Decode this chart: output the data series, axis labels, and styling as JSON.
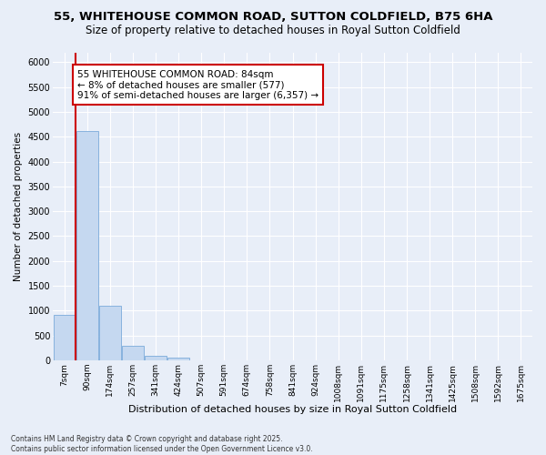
{
  "title": "55, WHITEHOUSE COMMON ROAD, SUTTON COLDFIELD, B75 6HA",
  "subtitle": "Size of property relative to detached houses in Royal Sutton Coldfield",
  "xlabel": "Distribution of detached houses by size in Royal Sutton Coldfield",
  "ylabel": "Number of detached properties",
  "bar_fill_color": "#c5d8f0",
  "bar_edge_color": "#7aabda",
  "annotation_text": "55 WHITEHOUSE COMMON ROAD: 84sqm\n← 8% of detached houses are smaller (577)\n91% of semi-detached houses are larger (6,357) →",
  "annotation_box_color": "#ffffff",
  "annotation_box_edge": "#cc0000",
  "vline_color": "#cc0000",
  "ylim": [
    0,
    6200
  ],
  "yticks": [
    0,
    500,
    1000,
    1500,
    2000,
    2500,
    3000,
    3500,
    4000,
    4500,
    5000,
    5500,
    6000
  ],
  "categories": [
    "7sqm",
    "90sqm",
    "174sqm",
    "257sqm",
    "341sqm",
    "424sqm",
    "507sqm",
    "591sqm",
    "674sqm",
    "758sqm",
    "841sqm",
    "924sqm",
    "1008sqm",
    "1091sqm",
    "1175sqm",
    "1258sqm",
    "1341sqm",
    "1425sqm",
    "1508sqm",
    "1592sqm",
    "1675sqm"
  ],
  "values": [
    920,
    4610,
    1090,
    300,
    85,
    60,
    0,
    0,
    0,
    0,
    0,
    0,
    0,
    0,
    0,
    0,
    0,
    0,
    0,
    0,
    0
  ],
  "footer_text": "Contains HM Land Registry data © Crown copyright and database right 2025.\nContains public sector information licensed under the Open Government Licence v3.0.",
  "bg_color": "#e8eef8",
  "grid_color": "#ffffff",
  "title_fontsize": 9.5,
  "subtitle_fontsize": 8.5,
  "tick_fontsize": 6.5,
  "ylabel_fontsize": 7.5,
  "xlabel_fontsize": 8,
  "annotation_fontsize": 7.5,
  "footer_fontsize": 5.5
}
